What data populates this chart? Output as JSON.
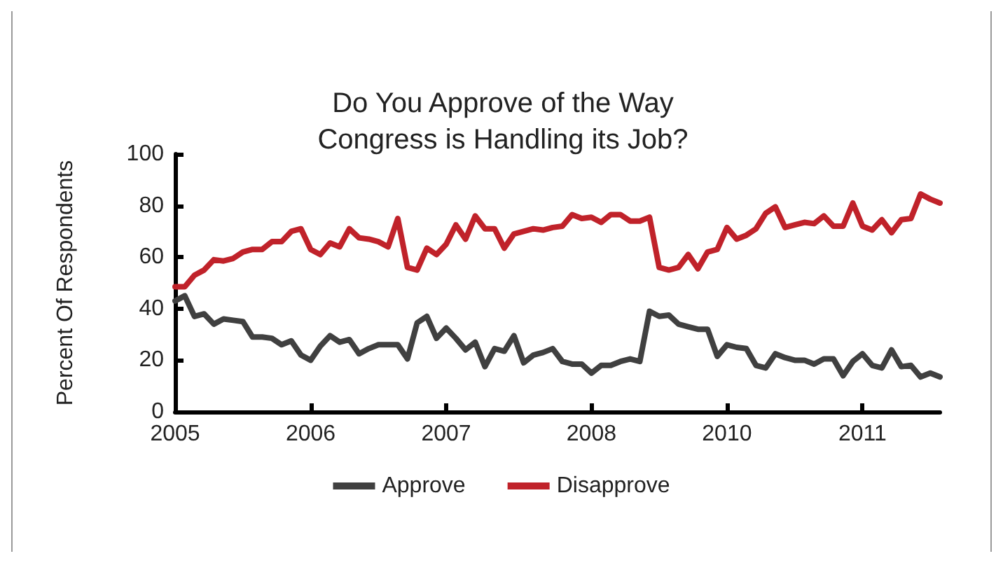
{
  "chart_data": {
    "type": "line",
    "title": "Do You Approve of the Way\nCongress is Handling its Job?",
    "ylabel": "Percent Of Respondents",
    "categories": [
      "2005",
      null,
      null,
      null,
      null,
      null,
      null,
      null,
      null,
      null,
      null,
      null,
      null,
      null,
      "2006",
      null,
      null,
      null,
      null,
      null,
      null,
      null,
      null,
      null,
      null,
      null,
      null,
      null,
      "2007",
      null,
      null,
      null,
      null,
      null,
      null,
      null,
      null,
      null,
      null,
      null,
      null,
      null,
      null,
      "2008",
      null,
      null,
      null,
      null,
      null,
      null,
      null,
      null,
      null,
      null,
      null,
      null,
      null,
      "2010",
      null,
      null,
      null,
      null,
      null,
      null,
      null,
      null,
      null,
      null,
      null,
      null,
      null,
      "2011",
      null,
      null,
      null,
      null,
      null,
      null,
      null,
      null
    ],
    "ylim": [
      0,
      100
    ],
    "yticks": [
      0,
      20,
      40,
      60,
      80,
      100
    ],
    "grid": false,
    "legend": "bottom",
    "marker": "none",
    "line_style": "solid",
    "series": [
      {
        "name": "Approve",
        "color": "#404040",
        "values": [
          43,
          45,
          37,
          38,
          34,
          36,
          35.5,
          35,
          29,
          29,
          28.5,
          26,
          27.5,
          22,
          20,
          25.5,
          29.5,
          27,
          28,
          22.5,
          24.5,
          26,
          26,
          26,
          20.5,
          34.5,
          37,
          28.5,
          32.5,
          28.5,
          24,
          27,
          17.5,
          24.5,
          23.5,
          29.5,
          19,
          22,
          23,
          24.5,
          19.5,
          18.5,
          18.5,
          15,
          18,
          18,
          19.5,
          20.5,
          19.5,
          39,
          37,
          37.5,
          34,
          33,
          32,
          32,
          21.5,
          26,
          25,
          24.5,
          18,
          17,
          22.5,
          21,
          20,
          20,
          18.5,
          20.5,
          20.5,
          14,
          19.5,
          22.5,
          18,
          17,
          24,
          17.5,
          18,
          13.5,
          15,
          13.5
        ]
      },
      {
        "name": "Disapprove",
        "color": "#c0222a",
        "values": [
          48.5,
          48.5,
          53,
          55,
          59,
          58.5,
          59.5,
          62,
          63,
          63,
          66,
          66,
          70,
          71,
          63,
          61,
          65.5,
          64,
          71,
          67.5,
          67,
          66,
          64,
          75,
          56,
          55,
          63.5,
          61,
          65,
          72.5,
          67,
          76,
          71,
          71,
          63.5,
          69,
          70,
          71,
          70.5,
          71.5,
          72,
          76.5,
          75,
          75.5,
          73.5,
          76.5,
          76.5,
          74,
          74,
          75.5,
          56,
          55,
          56,
          61,
          55.5,
          62,
          63,
          71.5,
          67,
          68.5,
          71,
          77,
          79.5,
          71.5,
          72.5,
          73.5,
          73,
          76,
          72,
          72,
          81,
          72,
          70.5,
          74.5,
          69.5,
          74.5,
          75,
          84.5,
          82.5,
          81
        ]
      }
    ]
  }
}
